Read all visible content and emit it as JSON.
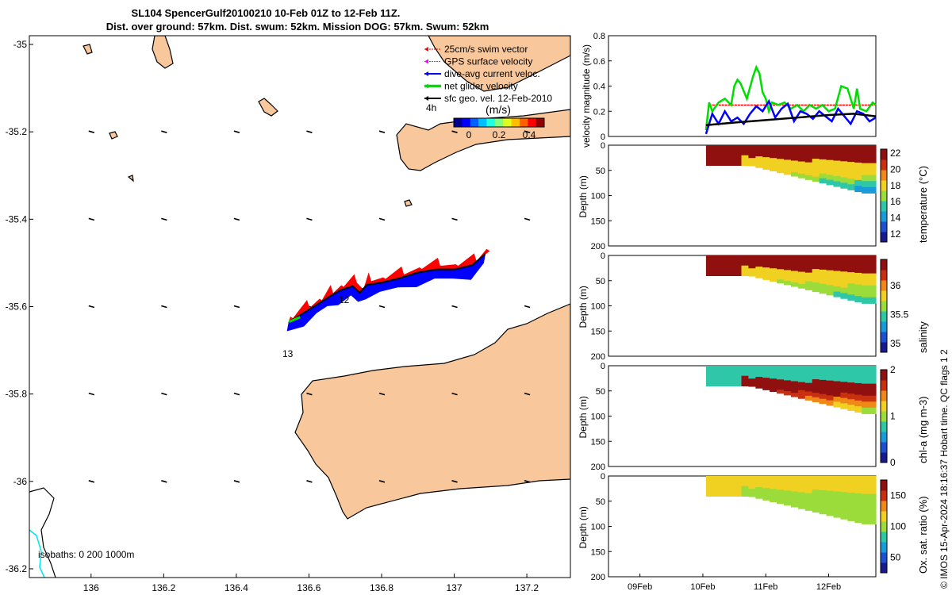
{
  "title_line1": "SL104 SpencerGulf20100210 10-Feb 01Z to 12-Feb 11Z.",
  "title_line2": "Dist. over ground: 57km. Dist. swum: 52km. Mission DOG: 57km. Swum: 52km",
  "credit": "© IMOS 15-Apr-2024 18:16:37 Hobart time. QC flags 1  2",
  "colors": {
    "land": "#f8c89c",
    "swim": "#ff0000",
    "gps": "#ff00ff",
    "current": "#0000ff",
    "net": "#00dd00",
    "geo": "#000000",
    "iso200": "#000000",
    "iso1000": "#00e5ee"
  },
  "chart_data": [
    {
      "type": "map",
      "name": "track-map",
      "xlim": [
        135.83,
        137.32
      ],
      "ylim": [
        -36.22,
        -34.98
      ],
      "xticks": [
        "136",
        "136.2",
        "136.4",
        "136.6",
        "136.8",
        "137",
        "137.2"
      ],
      "xtick_values": [
        136,
        136.2,
        136.4,
        136.6,
        136.8,
        137,
        137.2
      ],
      "yticks": [
        "-35",
        "-35.2",
        "-35.4",
        "-35.6",
        "-35.8",
        "-36",
        "-36.2"
      ],
      "ytick_values": [
        -35,
        -35.2,
        -35.4,
        -35.6,
        -35.8,
        -36,
        -36.2
      ],
      "legend": [
        {
          "label": "25cm/s swim vector",
          "color": "#ff0000"
        },
        {
          "label": "GPS surface velocity",
          "color": "#ff00ff"
        },
        {
          "label": "dive-avg current veloc.",
          "color": "#0000ff"
        },
        {
          "label": "net glider velocity",
          "color": "#00dd00"
        },
        {
          "label": "sfc geo. vel. 12-Feb-2010",
          "color": "#000000"
        }
      ],
      "legend_extra": "4h",
      "colorbar": {
        "label": "(m/s)",
        "ticks": [
          "0",
          "0.2",
          "0.4"
        ],
        "tick_values": [
          0,
          0.2,
          0.4
        ],
        "range": [
          -0.1,
          0.5
        ]
      },
      "day_labels": [
        "12",
        "13"
      ],
      "isobaths_label": "isobaths: 0   200  1000m",
      "track": [
        [
          136.545,
          -35.635
        ],
        [
          136.59,
          -35.612
        ],
        [
          136.625,
          -35.594
        ],
        [
          136.655,
          -35.578
        ],
        [
          136.685,
          -35.563
        ],
        [
          136.72,
          -35.553
        ],
        [
          136.74,
          -35.568
        ],
        [
          136.76,
          -35.55
        ],
        [
          136.8,
          -35.545
        ],
        [
          136.85,
          -35.535
        ],
        [
          136.9,
          -35.522
        ],
        [
          136.95,
          -35.515
        ],
        [
          137.0,
          -35.515
        ],
        [
          137.05,
          -35.505
        ],
        [
          137.085,
          -35.48
        ]
      ]
    },
    {
      "type": "line",
      "name": "velocity-magnitude",
      "ylabel": "velocity magnitude (m/s)",
      "ylim": [
        0,
        0.8
      ],
      "yticks": [
        "0",
        "0.2",
        "0.4",
        "0.6",
        "0.8"
      ],
      "ytick_values": [
        0,
        0.2,
        0.4,
        0.6,
        0.8
      ],
      "xlim_days": [
        8.5,
        12.75
      ],
      "series": [
        {
          "color": "#00dd00",
          "x": [
            10.05,
            10.1,
            10.15,
            10.25,
            10.35,
            10.45,
            10.5,
            10.55,
            10.6,
            10.7,
            10.8,
            10.85,
            10.9,
            10.95,
            11.0,
            11.05,
            11.1,
            11.2,
            11.3,
            11.4,
            11.5,
            11.6,
            11.7,
            11.8,
            11.9,
            12.0,
            12.1,
            12.2,
            12.3,
            12.4,
            12.45,
            12.5,
            12.6,
            12.7,
            12.75
          ],
          "values": [
            0.05,
            0.27,
            0.2,
            0.27,
            0.3,
            0.25,
            0.4,
            0.45,
            0.42,
            0.3,
            0.48,
            0.55,
            0.5,
            0.35,
            0.3,
            0.2,
            0.27,
            0.25,
            0.27,
            0.22,
            0.25,
            0.2,
            0.25,
            0.22,
            0.25,
            0.2,
            0.22,
            0.4,
            0.38,
            0.22,
            0.38,
            0.22,
            0.2,
            0.27,
            0.25
          ]
        },
        {
          "color": "#0000ff",
          "x": [
            10.05,
            10.15,
            10.25,
            10.35,
            10.45,
            10.55,
            10.65,
            10.75,
            10.85,
            10.95,
            11.05,
            11.15,
            11.25,
            11.35,
            11.45,
            11.55,
            11.65,
            11.75,
            11.85,
            11.95,
            12.05,
            12.15,
            12.25,
            12.35,
            12.45,
            12.55,
            12.65,
            12.75
          ],
          "values": [
            0.02,
            0.18,
            0.1,
            0.2,
            0.12,
            0.15,
            0.1,
            0.18,
            0.24,
            0.2,
            0.28,
            0.15,
            0.22,
            0.26,
            0.12,
            0.2,
            0.18,
            0.14,
            0.2,
            0.16,
            0.12,
            0.22,
            0.16,
            0.1,
            0.2,
            0.18,
            0.12,
            0.15
          ]
        },
        {
          "color": "#ff0000",
          "x": [
            10.1,
            12.75
          ],
          "values": [
            0.25,
            0.25
          ]
        },
        {
          "color": "#000000",
          "x": [
            10.05,
            10.5,
            11.0,
            11.5,
            12.0,
            12.4,
            12.75
          ],
          "values": [
            0.09,
            0.11,
            0.13,
            0.15,
            0.17,
            0.18,
            0.16
          ]
        }
      ]
    },
    {
      "type": "heatmap",
      "name": "temperature-section",
      "ylabel": "Depth (m)",
      "ylim": [
        0,
        200
      ],
      "yticks": [
        "0",
        "50",
        "100",
        "150",
        "200"
      ],
      "ytick_values": [
        0,
        50,
        100,
        150,
        200
      ],
      "colorbar_label": "temperature (°C)",
      "cbar_range": [
        11,
        22.5
      ],
      "cbar_ticks": [
        "12",
        "14",
        "16",
        "18",
        "20",
        "22"
      ],
      "cbar_tick_values": [
        12,
        14,
        16,
        18,
        20,
        22
      ],
      "surface_value": 21.5,
      "mid_value": 18.5,
      "bottom_value": 12.5
    },
    {
      "type": "heatmap",
      "name": "salinity-section",
      "ylabel": "Depth (m)",
      "ylim": [
        0,
        200
      ],
      "yticks": [
        "0",
        "50",
        "100",
        "150",
        "200"
      ],
      "ytick_values": [
        0,
        50,
        100,
        150,
        200
      ],
      "colorbar_label": "salinity",
      "cbar_range": [
        34.85,
        36.45
      ],
      "cbar_ticks": [
        "35",
        "35.5",
        "36"
      ],
      "cbar_tick_values": [
        35,
        35.5,
        36
      ],
      "surface_value": 36.35,
      "mid_value": 35.8,
      "bottom_value": 35.3
    },
    {
      "type": "heatmap",
      "name": "chla-section",
      "ylabel": "Depth (m)",
      "ylim": [
        0,
        200
      ],
      "yticks": [
        "0",
        "50",
        "100",
        "150",
        "200"
      ],
      "ytick_values": [
        0,
        50,
        100,
        150,
        200
      ],
      "colorbar_label": "chl-a (mg m-3)",
      "cbar_range": [
        0,
        2
      ],
      "cbar_ticks": [
        "0",
        "1",
        "2"
      ],
      "cbar_tick_values": [
        0,
        1,
        2
      ],
      "surface_value": 0.7,
      "mid_value": 1.9,
      "bottom_value": 0.7
    },
    {
      "type": "heatmap",
      "name": "oxygen-section",
      "ylabel": "Depth (m)",
      "ylim": [
        0,
        200
      ],
      "yticks": [
        "0",
        "50",
        "100",
        "150",
        "200"
      ],
      "ytick_values": [
        0,
        50,
        100,
        150,
        200
      ],
      "colorbar_label": "Ox. sat. ratio (%)",
      "cbar_range": [
        25,
        175
      ],
      "cbar_ticks": [
        "50",
        "100",
        "150"
      ],
      "cbar_tick_values": [
        50,
        100,
        150
      ],
      "surface_value": 118,
      "mid_value": 108,
      "bottom_value": 95
    }
  ],
  "time_axis": {
    "labels": [
      "09Feb",
      "10Feb",
      "11Feb",
      "12Feb"
    ],
    "label_days": [
      9,
      10,
      11,
      12
    ],
    "xlim_days": [
      8.5,
      12.75
    ],
    "data_start_day": 10.05
  }
}
